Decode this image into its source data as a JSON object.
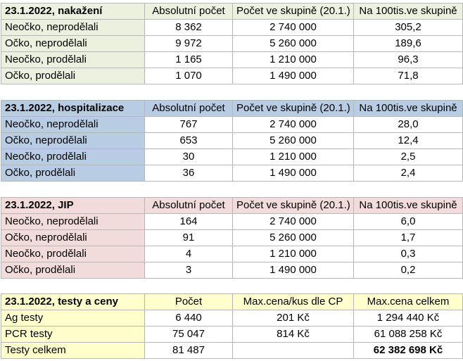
{
  "colors": {
    "green": "#ebf1de",
    "blue": "#b8cce4",
    "pink": "#f2dcdb",
    "yellow": "#ffffcc"
  },
  "tables": [
    {
      "title": "23.1.2022, nakažení",
      "headers": [
        "Absolutní počet",
        "Počet ve skupině (20.1.)",
        "Na 100tis.ve skupině"
      ],
      "rows": [
        [
          "Neočko, neprodělali",
          "8 362",
          "2 740 000",
          "305,2"
        ],
        [
          "Očko, neprodělali",
          "9 972",
          "5 260 000",
          "189,6"
        ],
        [
          "Neočko, prodělali",
          "1 165",
          "1 210 000",
          "96,3"
        ],
        [
          "Očko, prodělali",
          "1 070",
          "1 490 000",
          "71,8"
        ]
      ]
    },
    {
      "title": "23.1.2022, hospitalizace",
      "headers": [
        "Absolutní počet",
        "Počet ve skupině (20.1.)",
        "Na 100tis.ve skupině"
      ],
      "rows": [
        [
          "Neočko, neprodělali",
          "767",
          "2 740 000",
          "28,0"
        ],
        [
          "Očko, neprodělali",
          "653",
          "5 260 000",
          "12,4"
        ],
        [
          "Neočko, prodělali",
          "30",
          "1 210 000",
          "2,5"
        ],
        [
          "Očko, prodělali",
          "36",
          "1 490 000",
          "2,4"
        ]
      ]
    },
    {
      "title": "23.1.2022, JIP",
      "headers": [
        "Absolutní počet",
        "Počet ve skupině (20.1.)",
        "Na 100tis.ve skupině"
      ],
      "rows": [
        [
          "Neočko, neprodělali",
          "164",
          "2 740 000",
          "6,0"
        ],
        [
          "Očko, neprodělali",
          "91",
          "5 260 000",
          "1,7"
        ],
        [
          "Neočko, prodělali",
          "4",
          "1 210 000",
          "0,3"
        ],
        [
          "Očko, prodělali",
          "3",
          "1 490 000",
          "0,2"
        ]
      ]
    }
  ],
  "tests": {
    "title": "23.1.2022, testy a ceny",
    "headers": [
      "Počet",
      "Max.cena/kus dle CP",
      "Max.cena celkem"
    ],
    "rows": [
      [
        "Ag testy",
        "6 440",
        "201 Kč",
        "1 294 440 Kč"
      ],
      [
        "PCR testy",
        "75 047",
        "814 Kč",
        "61 088 258 Kč"
      ],
      [
        "Testy celkem",
        "81 487",
        "",
        "62 382 698 Kč"
      ]
    ]
  }
}
